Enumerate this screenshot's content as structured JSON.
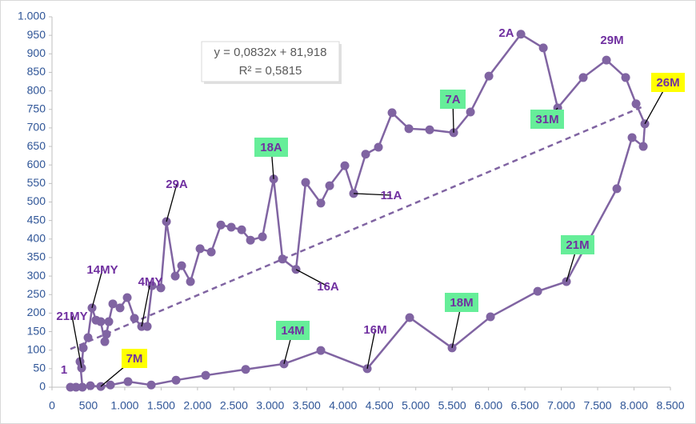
{
  "chart_data": {
    "type": "scatter-line",
    "color": "#8064a2",
    "x": [
      253,
      330,
      418,
      385,
      407,
      429,
      495,
      550,
      605,
      670,
      726,
      748,
      781,
      836,
      935,
      1034,
      1133,
      1232,
      1309,
      1375,
      1496,
      1573,
      1694,
      1782,
      1903,
      2035,
      2189,
      2321,
      2464,
      2607,
      2728,
      2893,
      3047,
      3168,
      3354,
      3486,
      3695,
      3816,
      4025,
      4146,
      4311,
      4487,
      4674,
      4905,
      5191,
      5521,
      5752,
      6005,
      6445,
      6753,
      6951,
      7302,
      7621,
      7885,
      8028,
      8149,
      8127,
      7973,
      7764,
      7071,
      6676,
      6027,
      5499,
      4916,
      4333,
      3695,
      3189,
      2662,
      2112,
      1705,
      1364,
      1045,
      803,
      671,
      528
    ],
    "values": [
      0,
      0,
      0,
      69,
      52,
      106,
      134,
      214,
      181,
      177,
      123,
      143,
      177,
      225,
      214,
      242,
      186,
      164,
      164,
      274,
      268,
      447,
      300,
      328,
      285,
      374,
      365,
      438,
      432,
      425,
      397,
      406,
      562,
      346,
      318,
      553,
      497,
      544,
      598,
      523,
      629,
      648,
      741,
      698,
      695,
      687,
      743,
      840,
      953,
      916,
      754,
      836,
      883,
      836,
      765,
      711,
      650,
      674,
      536,
      285,
      259,
      190,
      106,
      188,
      50,
      99,
      63,
      48,
      32,
      19,
      6,
      15,
      6,
      2,
      4
    ],
    "xlim": [
      0,
      8500
    ],
    "ylim": [
      0,
      1000
    ],
    "xticks": [
      0,
      500,
      {
        "value": 1000,
        "label": "1.000"
      },
      {
        "value": 1500,
        "label": "1.500"
      },
      {
        "value": 2000,
        "label": "2.000"
      },
      {
        "value": 2500,
        "label": "2.500"
      },
      {
        "value": 3000,
        "label": "3.000"
      },
      {
        "value": 3500,
        "label": "3.500"
      },
      {
        "value": 4000,
        "label": "4.000"
      },
      {
        "value": 4500,
        "label": "4.500"
      },
      {
        "value": 5000,
        "label": "5.000"
      },
      {
        "value": 5500,
        "label": "5.500"
      },
      {
        "value": 6000,
        "label": "6.000"
      },
      {
        "value": 6500,
        "label": "6.500"
      },
      {
        "value": 7000,
        "label": "7.000"
      },
      {
        "value": 7500,
        "label": "7.500"
      },
      {
        "value": 8000,
        "label": "8.000"
      },
      {
        "value": 8500,
        "label": "8.500"
      }
    ],
    "yticks": [
      0,
      50,
      100,
      150,
      200,
      250,
      300,
      350,
      400,
      450,
      500,
      550,
      600,
      650,
      700,
      750,
      800,
      850,
      900,
      950,
      {
        "value": 1000,
        "label": "1.000"
      }
    ],
    "trendline": {
      "slope": 0.0832,
      "intercept": 81.918,
      "equation": "y = 0,0832x + 81,918",
      "r_squared": "R² = 0,5815"
    },
    "annotations": [
      {
        "text": "1",
        "x": 253,
        "y": 0
      },
      {
        "text": "21MY",
        "x": 407,
        "y": 52
      },
      {
        "text": "14MY",
        "x": 550,
        "y": 214
      },
      {
        "text": "7M",
        "x": 671,
        "y": 2,
        "bg": "#ffff00"
      },
      {
        "text": "4MY",
        "x": 1232,
        "y": 164
      },
      {
        "text": "29A",
        "x": 1573,
        "y": 447
      },
      {
        "text": "18A",
        "x": 3047,
        "y": 562,
        "bg": "#66ee99"
      },
      {
        "text": "16A",
        "x": 3354,
        "y": 318
      },
      {
        "text": "11A",
        "x": 4146,
        "y": 523
      },
      {
        "text": "7A",
        "x": 5521,
        "y": 687,
        "bg": "#66ee99"
      },
      {
        "text": "2A",
        "x": 6445,
        "y": 953
      },
      {
        "text": "31M",
        "x": 6951,
        "y": 754,
        "bg": "#66ee99"
      },
      {
        "text": "29M",
        "x": 7621,
        "y": 883
      },
      {
        "text": "26M",
        "x": 8149,
        "y": 711,
        "bg": "#ffff00"
      },
      {
        "text": "21M",
        "x": 7071,
        "y": 285,
        "bg": "#66ee99"
      },
      {
        "text": "18M",
        "x": 5499,
        "y": 106,
        "bg": "#66ee99"
      },
      {
        "text": "16M",
        "x": 4333,
        "y": 50
      },
      {
        "text": "14M",
        "x": 3189,
        "y": 63,
        "bg": "#66ee99"
      }
    ]
  }
}
